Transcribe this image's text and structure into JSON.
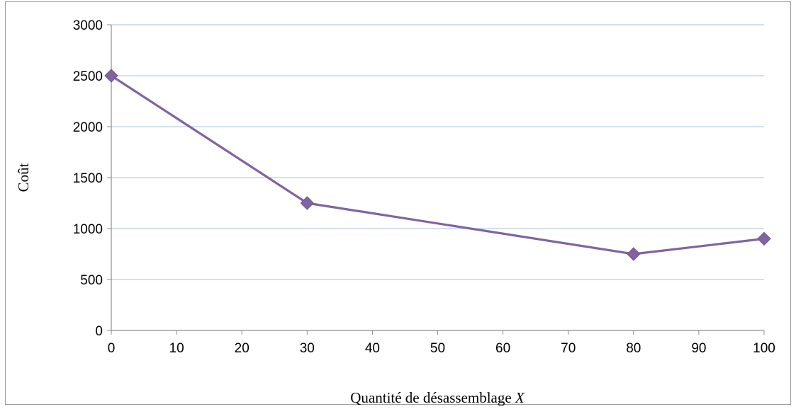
{
  "chart_data": {
    "type": "line",
    "title": "",
    "xlabel": "Quantité de désassemblage",
    "xlabel_variable": "X",
    "ylabel": "Coût",
    "xlim": [
      0,
      100
    ],
    "ylim": [
      0,
      3000
    ],
    "x_ticks": [
      "0",
      "10",
      "20",
      "30",
      "40",
      "50",
      "60",
      "70",
      "80",
      "90",
      "100"
    ],
    "y_ticks": [
      "0",
      "500",
      "1000",
      "1500",
      "2000",
      "2500",
      "3000"
    ],
    "grid": "horizontal",
    "legend": "none",
    "series": [
      {
        "x": [
          0,
          30,
          80,
          100
        ],
        "y": [
          2500,
          1250,
          750,
          900
        ],
        "color": "#8064a2",
        "marker": "diamond"
      }
    ],
    "colors": {
      "series": "#8064a2",
      "gridline": "#b9cde5",
      "axis": "#8c8c8c"
    }
  }
}
